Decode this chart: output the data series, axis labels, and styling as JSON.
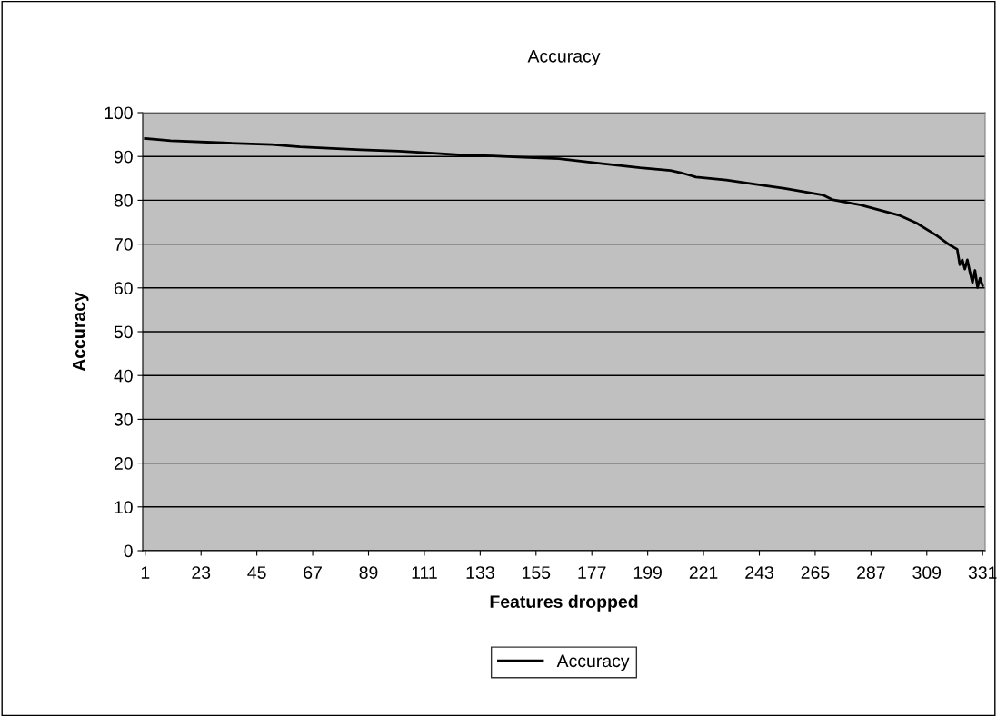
{
  "chart_data": {
    "type": "line",
    "title": "Accuracy",
    "xlabel": "Features dropped",
    "ylabel": "Accuracy",
    "series": [
      {
        "name": "Accuracy",
        "color": "#000000",
        "x": [
          1,
          5,
          11,
          32,
          51,
          62,
          73,
          86,
          101,
          116,
          126,
          138,
          150,
          164,
          182,
          196,
          208,
          212,
          218,
          230,
          241,
          253,
          268,
          272,
          283,
          298,
          305,
          313,
          318,
          321,
          322,
          323,
          324,
          325,
          326,
          327,
          328,
          329,
          330,
          331
        ],
        "values": [
          94.1,
          93.9,
          93.6,
          93.1,
          92.7,
          92.2,
          91.9,
          91.5,
          91.2,
          90.7,
          90.3,
          90.1,
          89.8,
          89.5,
          88.3,
          87.4,
          86.8,
          86.3,
          85.3,
          84.6,
          83.7,
          82.7,
          81.2,
          80.1,
          78.9,
          76.6,
          74.8,
          71.9,
          69.8,
          68.8,
          65.3,
          66.4,
          64.3,
          66.4,
          63.6,
          61.2,
          64.0,
          60.1,
          62.2,
          60.5
        ]
      }
    ],
    "xlim": [
      0,
      332
    ],
    "xticks": [
      1,
      23,
      45,
      67,
      89,
      111,
      133,
      155,
      177,
      199,
      221,
      243,
      265,
      287,
      309,
      331
    ],
    "ylim": [
      0,
      100
    ],
    "yticks": [
      0,
      10,
      20,
      30,
      40,
      50,
      60,
      70,
      80,
      90,
      100
    ],
    "grid": "y",
    "legend": "bottom",
    "marker": "none",
    "line_style": "solid"
  }
}
